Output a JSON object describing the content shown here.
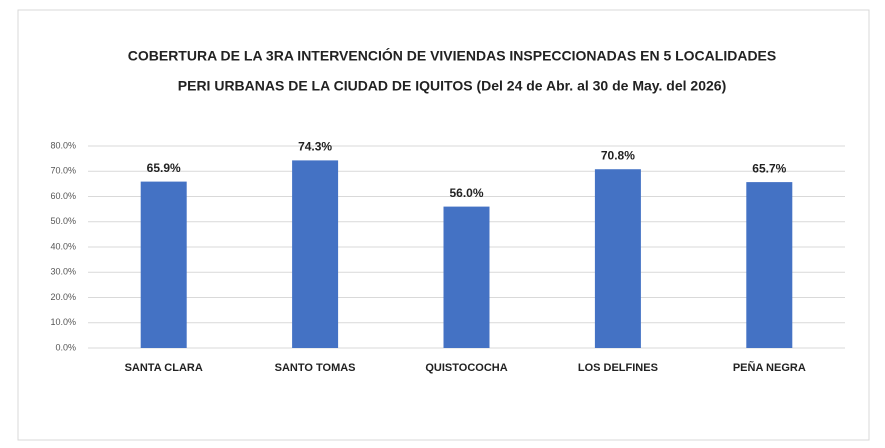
{
  "chart_data": {
    "type": "bar",
    "title": [
      "COBERTURA DE LA 3RA INTERVENCIÓN DE VIVIENDAS INSPECCIONADAS EN 5 LOCALIDADES",
      "PERI URBANAS DE LA CIUDAD DE IQUITOS (Del 24 de Abr. al 30 de May. del 2026)"
    ],
    "categories": [
      "SANTA CLARA",
      "SANTO TOMAS",
      "QUISTOCOCHA",
      "LOS DELFINES",
      "PEÑA NEGRA"
    ],
    "values": [
      65.9,
      74.3,
      56.0,
      70.8,
      65.7
    ],
    "value_labels": [
      "65.9%",
      "74.3%",
      "56.0%",
      "70.8%",
      "65.7%"
    ],
    "color": "#4472c4",
    "ylim": [
      0,
      80
    ],
    "yticks": [
      {
        "value": 0,
        "label": "0.0%"
      },
      {
        "value": 10,
        "label": "10.0%"
      },
      {
        "value": 20,
        "label": "20.0%"
      },
      {
        "value": 30,
        "label": "30.0%"
      },
      {
        "value": 40,
        "label": "40.0%"
      },
      {
        "value": 50,
        "label": "50.0%"
      },
      {
        "value": 60,
        "label": "60.0%"
      },
      {
        "value": 70,
        "label": "70.0%"
      },
      {
        "value": 80,
        "label": "80.0%"
      }
    ],
    "grid": true
  }
}
